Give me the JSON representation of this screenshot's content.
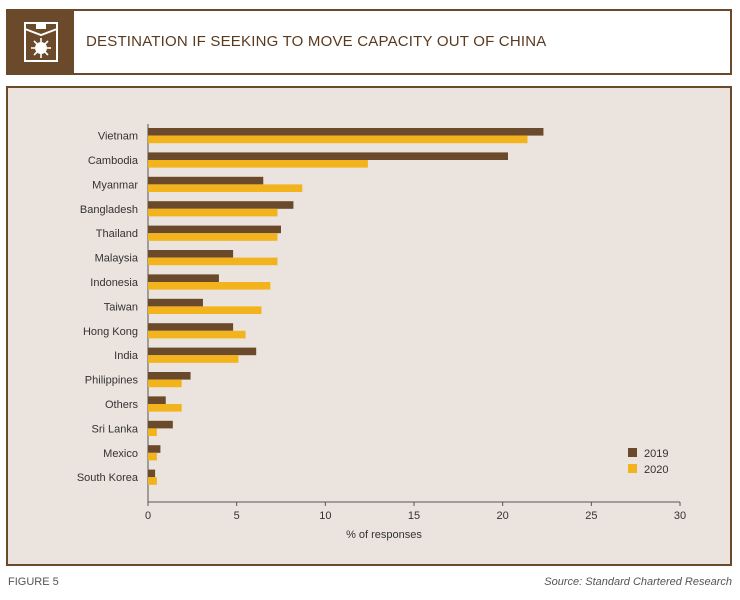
{
  "header": {
    "title": "DESTINATION IF SEEKING TO MOVE CAPACITY OUT OF CHINA"
  },
  "footer": {
    "figure": "FIGURE 5",
    "source": "Source: Standard Chartered Research"
  },
  "colors": {
    "brand": "#6b4a2b",
    "panel_bg": "#ebe3dd",
    "s2019": "#6b4a2b",
    "s2020": "#f2b31c"
  },
  "chart_data": {
    "type": "bar",
    "orientation": "horizontal",
    "categories": [
      "Vietnam",
      "Cambodia",
      "Myanmar",
      "Bangladesh",
      "Thailand",
      "Malaysia",
      "Indonesia",
      "Taiwan",
      "Hong Kong",
      "India",
      "Philippines",
      "Others",
      "Sri Lanka",
      "Mexico",
      "South Korea"
    ],
    "series": [
      {
        "name": "2019",
        "values": [
          22.3,
          20.3,
          6.5,
          8.2,
          7.5,
          4.8,
          4.0,
          3.1,
          4.8,
          6.1,
          2.4,
          1.0,
          1.4,
          0.7,
          0.4
        ]
      },
      {
        "name": "2020",
        "values": [
          21.4,
          12.4,
          8.7,
          7.3,
          7.3,
          7.3,
          6.9,
          6.4,
          5.5,
          5.1,
          1.9,
          1.9,
          0.5,
          0.5,
          0.5
        ]
      }
    ],
    "xlabel": "% of responses",
    "xlim": [
      0,
      30
    ],
    "xticks": [
      "0",
      "5",
      "10",
      "15",
      "20",
      "25",
      "30"
    ],
    "legend_position": "bottom-right",
    "grid": false
  }
}
